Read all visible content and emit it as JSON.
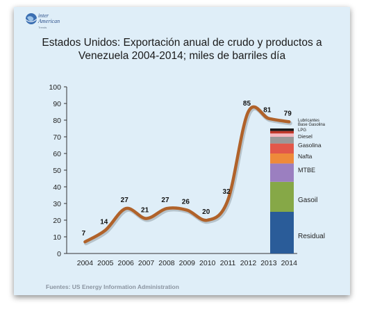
{
  "brand": {
    "name_line1": "inter",
    "name_line2": "American",
    "sub": "Trends"
  },
  "title_line1": "Estados Unidos: Exportación anual de crudo y productos a",
  "title_line2": "Venezuela 2004-2014; miles de barriles día",
  "source": "Fuentes: US Energy Information Administration",
  "colors": {
    "line": "#b0622a",
    "background": "#dfeef8"
  },
  "chart_data": {
    "type": "line",
    "title": "Estados Unidos: Exportación anual de crudo y productos a Venezuela 2004-2014; miles de barriles día",
    "xlabel": "",
    "ylabel": "",
    "ylim": [
      0,
      100
    ],
    "y_ticks": [
      0,
      10,
      20,
      30,
      40,
      50,
      60,
      70,
      80,
      90,
      100
    ],
    "x_ticks": [
      "2004",
      "2005",
      "2006",
      "2007",
      "2008",
      "2009",
      "2010",
      "2011",
      "2012",
      "2013",
      "2014"
    ],
    "grid": false,
    "series": [
      {
        "values": [
          {
            "x": 2004,
            "y": 7,
            "label": "7"
          },
          {
            "x": 2005,
            "y": 14,
            "label": "14"
          },
          {
            "x": 2006,
            "y": 27,
            "label": "27"
          },
          {
            "x": 2007,
            "y": 21,
            "label": "21"
          },
          {
            "x": 2008,
            "y": 27,
            "label": "27"
          },
          {
            "x": 2009,
            "y": 26,
            "label": "26"
          },
          {
            "x": 2010,
            "y": 20,
            "label": "20"
          },
          {
            "x": 2011,
            "y": 32,
            "label": "32"
          },
          {
            "x": 2012,
            "y": 85,
            "label": "85"
          },
          {
            "x": 2013,
            "y": 81,
            "label": "81"
          },
          {
            "x": 2014,
            "y": 79,
            "label": "79"
          }
        ]
      }
    ],
    "stacked_bar": {
      "year": "2014",
      "segments": [
        {
          "name": "Residual",
          "value": 25,
          "color": "#2a5c99"
        },
        {
          "name": "Gasoil",
          "value": 18,
          "color": "#86a847"
        },
        {
          "name": "MTBE",
          "value": 11,
          "color": "#9b7fc0"
        },
        {
          "name": "Nafta",
          "value": 6,
          "color": "#ee8a3a"
        },
        {
          "name": "Gasolina",
          "value": 6,
          "color": "#e2584a"
        },
        {
          "name": "Diesel",
          "value": 4,
          "color": "#999999"
        },
        {
          "name": "LPG",
          "value": 2,
          "color": "#f5b8c0"
        },
        {
          "name": "Base Gasolina",
          "value": 1.5,
          "color": "#c0392b"
        },
        {
          "name": "Lubricantes",
          "value": 1.5,
          "color": "#1a1a1a"
        }
      ]
    }
  }
}
